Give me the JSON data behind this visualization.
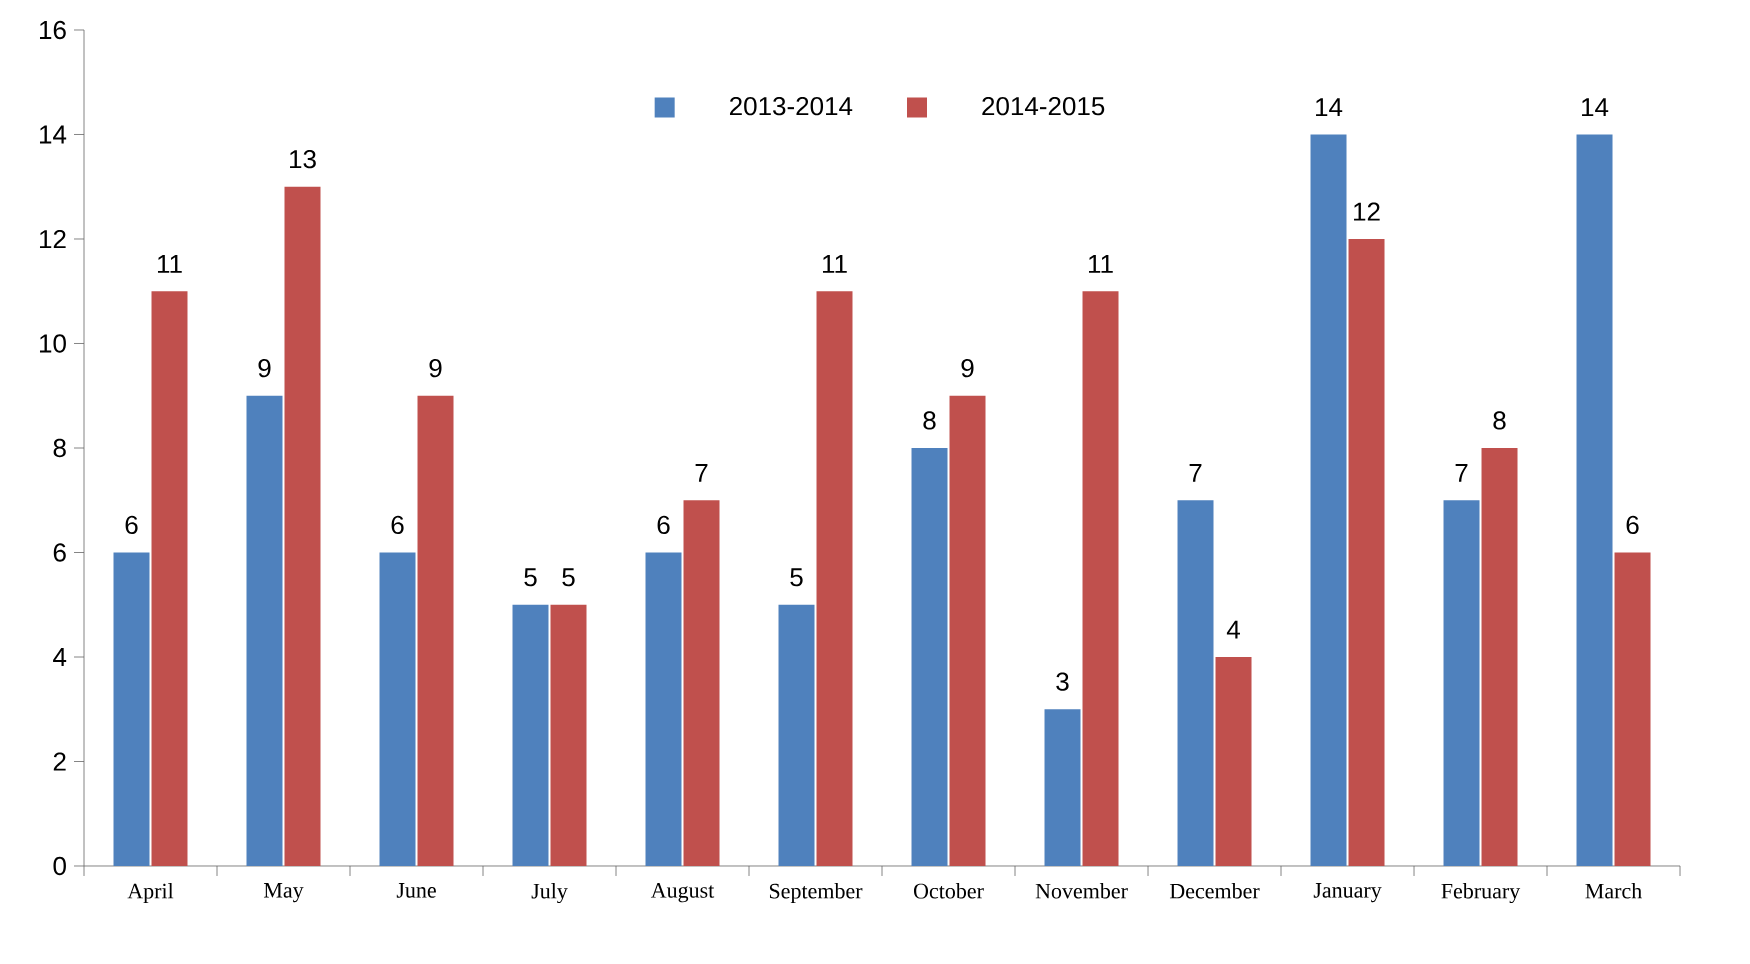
{
  "chart_data": {
    "type": "bar",
    "categories": [
      "April",
      "May",
      "June",
      "July",
      "August",
      "September",
      "October",
      "November",
      "December",
      "January",
      "February",
      "March"
    ],
    "series": [
      {
        "name": "2013-2014",
        "color": "#4f81bd",
        "values": [
          6,
          9,
          6,
          5,
          6,
          5,
          8,
          3,
          7,
          14,
          7,
          14
        ]
      },
      {
        "name": "2014-2015",
        "color": "#c0504d",
        "values": [
          11,
          13,
          9,
          5,
          7,
          11,
          9,
          11,
          4,
          12,
          8,
          6
        ]
      }
    ],
    "ylim": [
      0,
      16
    ],
    "yticks": [
      0,
      2,
      4,
      6,
      8,
      10,
      12,
      14,
      16
    ],
    "legend": "top",
    "data_labels": true
  }
}
